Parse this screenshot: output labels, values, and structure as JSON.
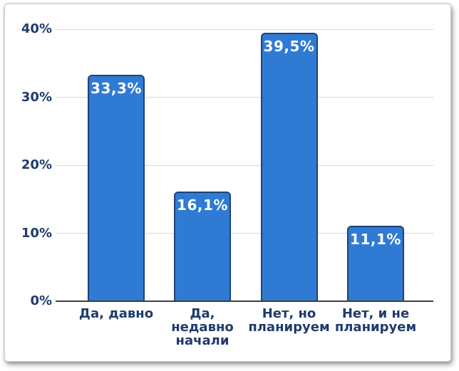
{
  "chart_data": {
    "type": "bar",
    "title": "",
    "categories": [
      "Да, давно",
      "Да,\nнедавно\nначали",
      "Нет, но\nпланируем",
      "Нет, и не\nпланируем"
    ],
    "values": [
      33.3,
      16.1,
      39.5,
      11.1
    ],
    "value_labels": [
      "33,3%",
      "16,1%",
      "39,5%",
      "11,1%"
    ],
    "ytick_values": [
      0,
      10,
      20,
      30,
      40
    ],
    "ytick_labels": [
      "0%",
      "10%",
      "20%",
      "30%",
      "40%"
    ],
    "ylim": [
      0,
      40
    ],
    "xlabel": "",
    "ylabel": "",
    "grid": true,
    "legend": "none"
  },
  "colors": {
    "bar_fill": "#2F7BD3",
    "bar_border": "#1E4278",
    "label_text": "#1F3B6D",
    "value_label_text": "#FFFFFF",
    "gridline": "#D8D8D8",
    "axis_line": "#3F3F3F",
    "card_background": "#FFFFFF"
  }
}
